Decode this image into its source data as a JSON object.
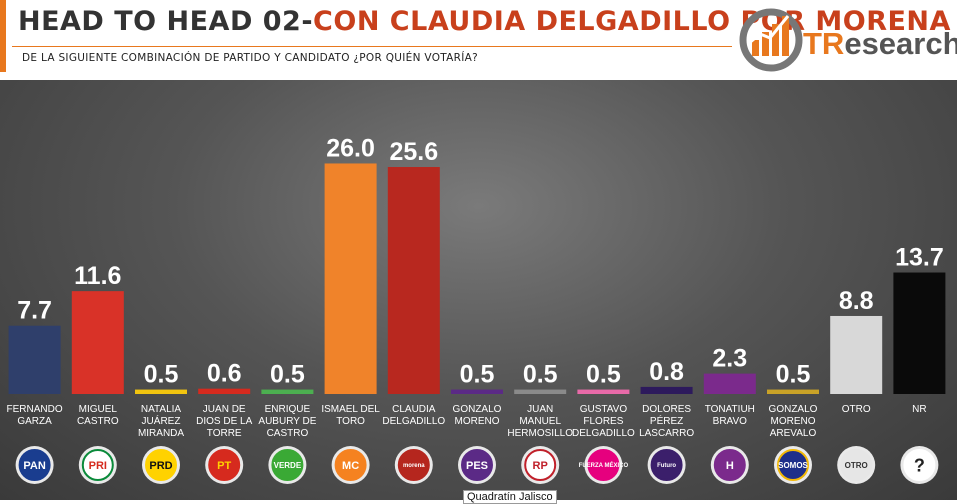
{
  "header": {
    "title_part1": "HEAD TO HEAD 02-",
    "title_part2": "CON CLAUDIA DELGADILLO POR MORENA",
    "subtitle": "DE LA SIGUIENTE COMBINACIÓN DE PARTIDO Y CANDIDATO ¿POR QUIÉN VOTARÍA?",
    "logo_text_a": "TR",
    "logo_text_b": "esearch"
  },
  "colors": {
    "accent": "#e8781e",
    "title_dark": "#333333",
    "title_red": "#c8401c"
  },
  "tooltip": "Quadratín Jalisco",
  "chart_data": {
    "type": "bar",
    "title": "",
    "xlabel": "",
    "ylabel": "",
    "ylim": [
      0,
      30
    ],
    "grid": false,
    "categories": [
      [
        "FERNANDO",
        "GARZA"
      ],
      [
        "MIGUEL",
        "CASTRO"
      ],
      [
        "NATALIA",
        "JUÁREZ",
        "MIRANDA"
      ],
      [
        "JUAN DE",
        "DIOS DE LA",
        "TORRE"
      ],
      [
        "ENRIQUE",
        "AUBURY DE",
        "CASTRO"
      ],
      [
        "ISMAEL DEL",
        "TORO"
      ],
      [
        "CLAUDIA",
        "DELGADILLO"
      ],
      [
        "GONZALO",
        "MORENO"
      ],
      [
        "JUAN",
        "MANUEL",
        "HERMOSILLO"
      ],
      [
        "GUSTAVO",
        "FLORES",
        "DELGADILLO"
      ],
      [
        "DOLORES",
        "PÉREZ",
        "LASCARRO"
      ],
      [
        "TONATIUH",
        "BRAVO"
      ],
      [
        "GONZALO",
        "MORENO",
        "AREVALO"
      ],
      [
        "OTRO"
      ],
      [
        "NR"
      ]
    ],
    "values": [
      7.7,
      11.6,
      0.5,
      0.6,
      0.5,
      26.0,
      25.6,
      0.5,
      0.5,
      0.5,
      0.8,
      2.3,
      0.5,
      8.8,
      13.7
    ],
    "value_labels": [
      "7.7",
      "11.6",
      "0.5",
      "0.6",
      "0.5",
      "26.0",
      "25.6",
      "0.5",
      "0.5",
      "0.5",
      "0.8",
      "2.3",
      "0.5",
      "8.8",
      "13.7"
    ],
    "colors": [
      "#2f3f6b",
      "#d93228",
      "#f1c40f",
      "#d62a1e",
      "#4caf50",
      "#f0832a",
      "#b8281f",
      "#5b2a86",
      "#8a8a8a",
      "#e86aa8",
      "#2d1a5c",
      "#7b2a8c",
      "#c9a227",
      "#d8d8d8",
      "#0a0a0a"
    ],
    "party_logos": [
      {
        "text": "PAN",
        "bg": "#1a3d8f",
        "fg": "#ffffff",
        "ring": "#1a3d8f"
      },
      {
        "text": "PRI",
        "bg": "#ffffff",
        "fg": "#d52b1e",
        "ring": "#0a8a3a"
      },
      {
        "text": "PRD",
        "bg": "#ffd200",
        "fg": "#111111",
        "ring": "#ffd200"
      },
      {
        "text": "PT",
        "bg": "#d62a1e",
        "fg": "#ffd200",
        "ring": "#d62a1e"
      },
      {
        "text": "VERDE",
        "bg": "#3aa935",
        "fg": "#ffffff",
        "ring": "#3aa935"
      },
      {
        "text": "MC",
        "bg": "#f58220",
        "fg": "#ffffff",
        "ring": "#f58220"
      },
      {
        "text": "morena",
        "bg": "#b5261e",
        "fg": "#ffffff",
        "ring": "#b5261e"
      },
      {
        "text": "PES",
        "bg": "#5b2a86",
        "fg": "#ffffff",
        "ring": "#5b2a86"
      },
      {
        "text": "RP",
        "bg": "#ffffff",
        "fg": "#c0202a",
        "ring": "#c0202a"
      },
      {
        "text": "FUERZA MÉXICO",
        "bg": "#e6007e",
        "fg": "#ffffff",
        "ring": "#e6007e"
      },
      {
        "text": "Futuro",
        "bg": "#3b1f6b",
        "fg": "#ffffff",
        "ring": "#3b1f6b"
      },
      {
        "text": "H",
        "bg": "#7b2a8c",
        "fg": "#ffffff",
        "ring": "#7b2a8c"
      },
      {
        "text": "SOMOS",
        "bg": "#1e2f8a",
        "fg": "#ffffff",
        "ring": "#f2b705"
      },
      {
        "text": "OTRO",
        "bg": "#e6e6e6",
        "fg": "#333333",
        "ring": "#e6e6e6"
      },
      {
        "text": "?",
        "bg": "#ffffff",
        "fg": "#222222",
        "ring": "#ffffff"
      }
    ]
  }
}
